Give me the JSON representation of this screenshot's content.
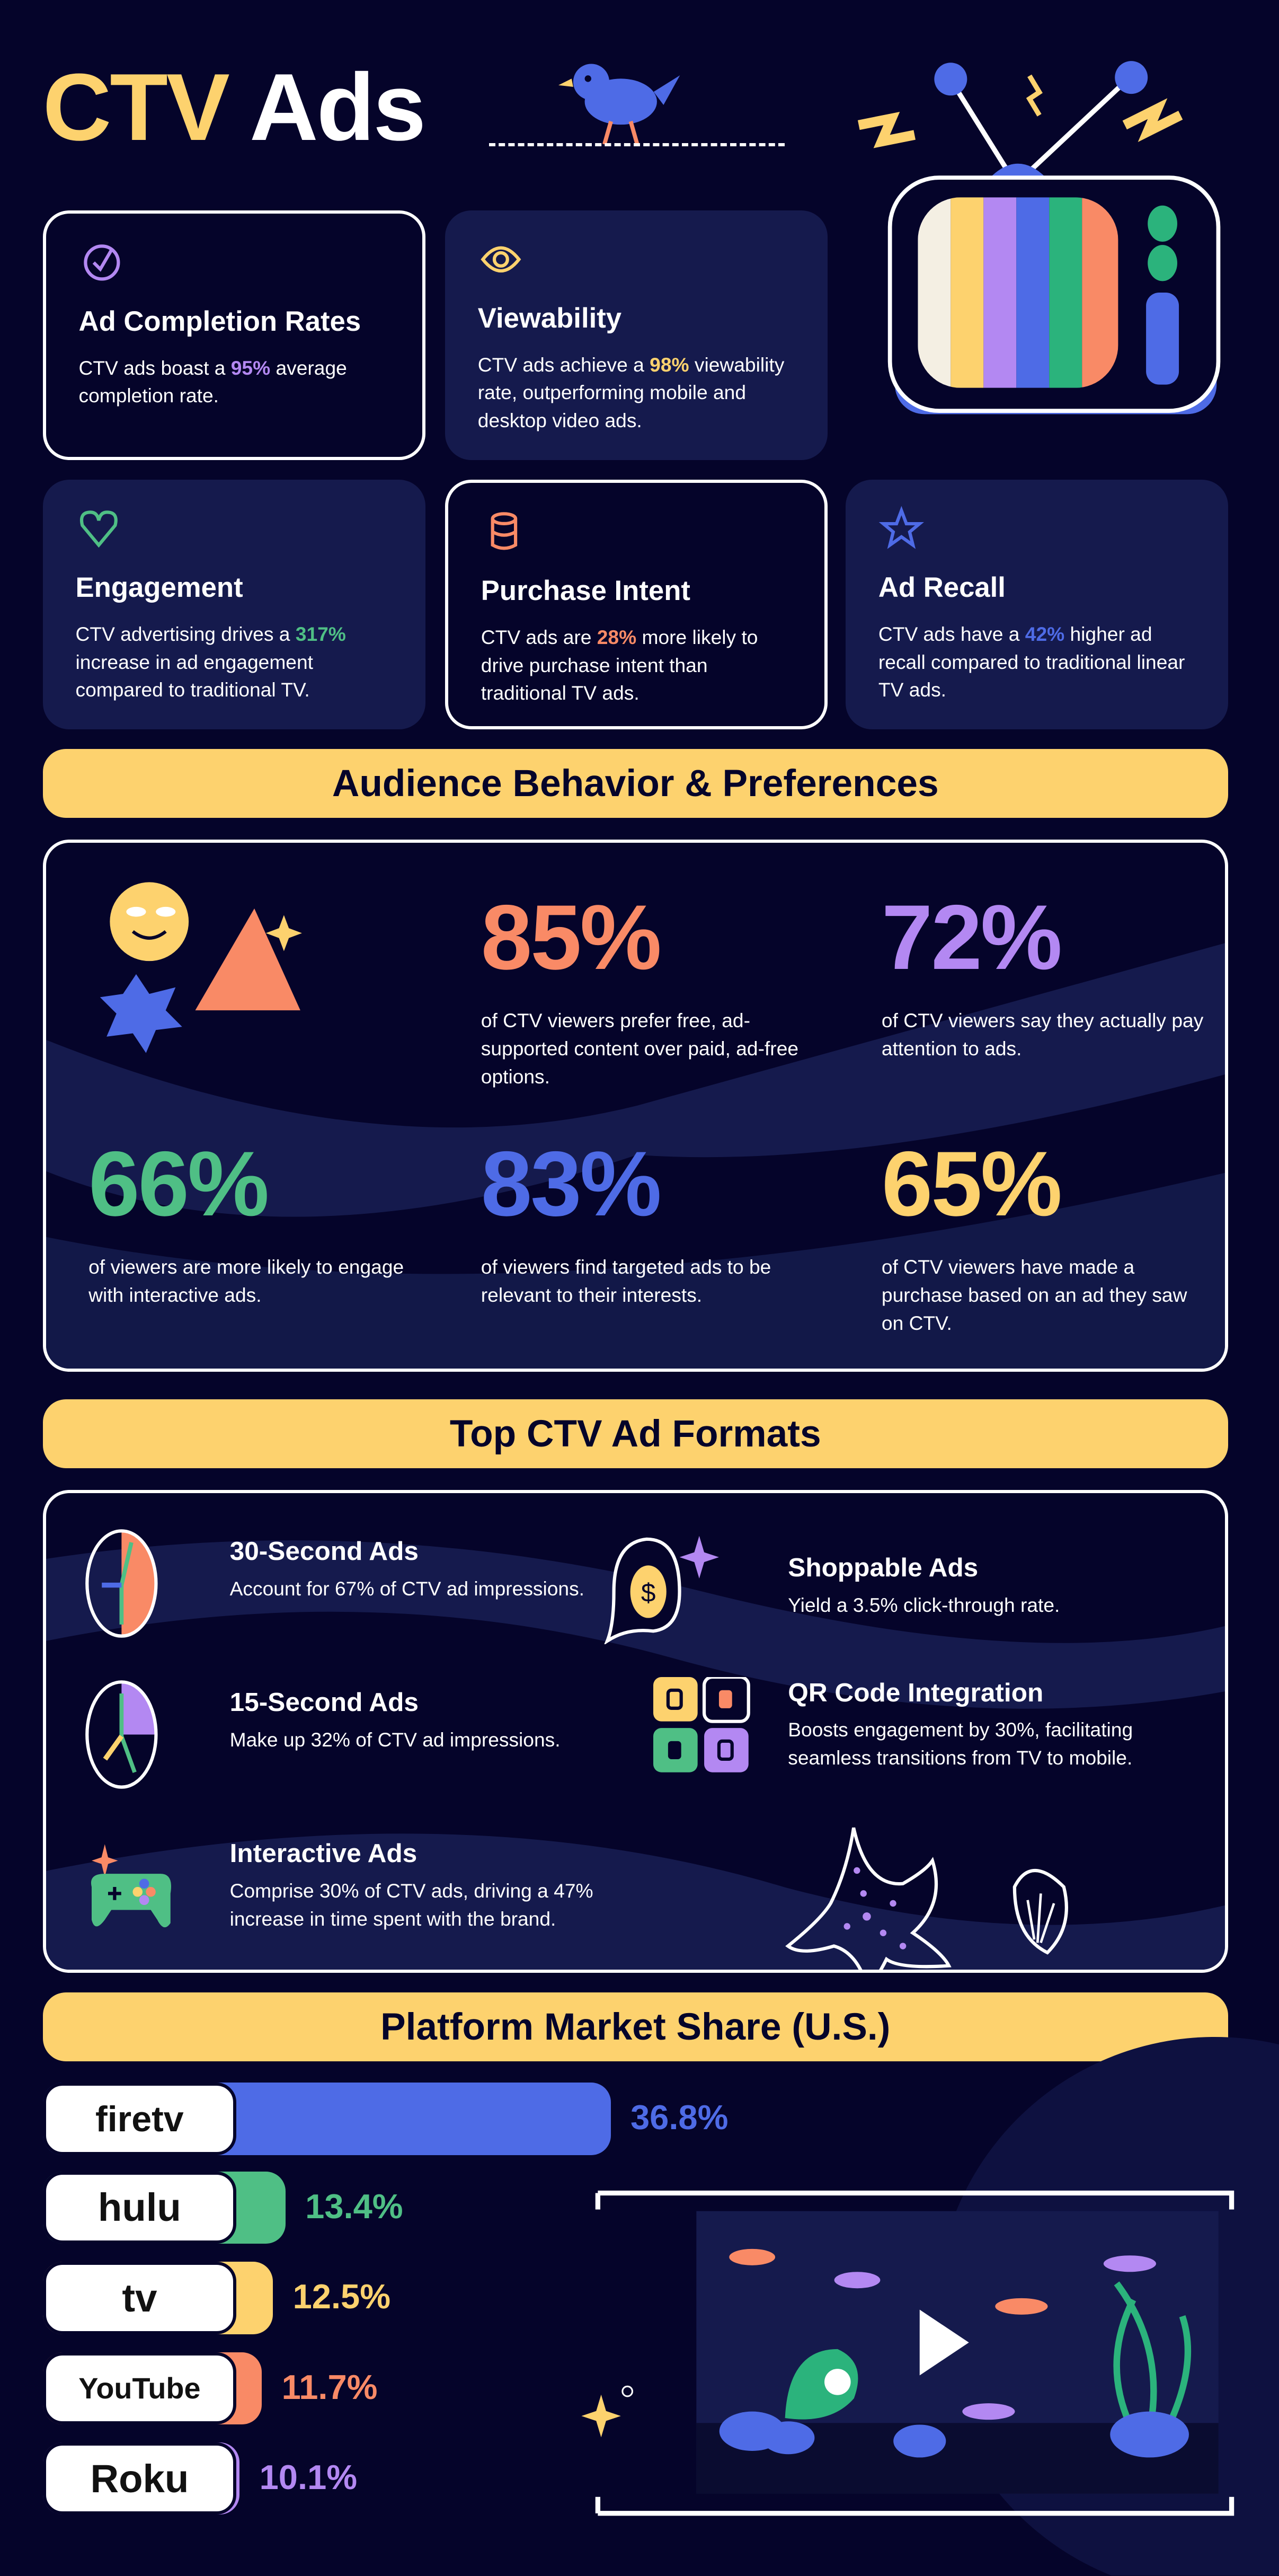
{
  "header": {
    "title_part1": "CTV",
    "title_part2": "Ads"
  },
  "colors": {
    "background": "#05042a",
    "card": "#151a4d",
    "yellow": "#FDD26E",
    "orange": "#F98A66",
    "purple": "#B388F2",
    "green": "#4FBF85",
    "blue": "#4E6BE6"
  },
  "cards": [
    {
      "title": "Ad Completion Rates",
      "pre": "CTV ads boast a ",
      "highlight": "95%",
      "post": " average completion rate.",
      "icon": "check-circle-icon"
    },
    {
      "title": "Viewability",
      "pre": "CTV ads achieve a ",
      "highlight": "98%",
      "post": " viewability rate, outperforming mobile and desktop video ads.",
      "icon": "eye-icon"
    },
    {
      "title": "Engagement",
      "pre": "CTV advertising drives a ",
      "highlight": "317%",
      "post": " increase in ad engagement compared to traditional TV.",
      "icon": "heart-icon"
    },
    {
      "title": "Purchase Intent",
      "pre": "CTV ads are ",
      "highlight": "28%",
      "post": " more likely to drive purchase intent than traditional TV ads.",
      "icon": "database-icon"
    },
    {
      "title": "Ad Recall",
      "pre": "CTV ads have a ",
      "highlight": "42%",
      "post": " higher ad recall compared to traditional linear TV ads.",
      "icon": "star-icon"
    }
  ],
  "audience": {
    "heading": "Audience Behavior & Preferences",
    "stats": [
      {
        "value": "85%",
        "text": "of CTV viewers prefer free, ad-supported content over paid, ad-free options."
      },
      {
        "value": "72%",
        "text": "of CTV viewers say they actually pay attention to ads."
      },
      {
        "value": "66%",
        "text": "of viewers are more likely to engage with interactive ads."
      },
      {
        "value": "83%",
        "text": "of viewers find targeted ads to be relevant to their interests."
      },
      {
        "value": "65%",
        "text": "of CTV viewers have made a purchase based on an ad they saw on CTV."
      }
    ]
  },
  "formats": {
    "heading": "Top CTV Ad Formats",
    "items": [
      {
        "title": "30-Second Ads",
        "text": "Account for 67% of CTV ad impressions.",
        "icon": "clock-icon"
      },
      {
        "title": "15-Second Ads",
        "text": "Make up 32% of CTV ad impressions.",
        "icon": "clock-icon"
      },
      {
        "title": "Interactive Ads",
        "text": "Comprise 30% of CTV ads, driving a 47% increase in time spent with the brand.",
        "icon": "gamepad-icon"
      },
      {
        "title": "Shoppable Ads",
        "text": "Yield a 3.5% click-through rate.",
        "icon": "dollar-bubble-icon"
      },
      {
        "title": "QR Code Integration",
        "text": "Boosts engagement by 30%, facilitating seamless transitions from TV to mobile.",
        "icon": "qr-code-icon"
      }
    ]
  },
  "market": {
    "heading": "Platform Market Share (U.S.)",
    "platforms": [
      {
        "logo": "firetv",
        "value": 36.8,
        "label": "36.8%",
        "color": "#4E6BE6"
      },
      {
        "logo": "hulu",
        "value": 13.4,
        "label": "13.4%",
        "color": "#4FBF85"
      },
      {
        "logo": "tv",
        "value": 12.5,
        "label": "12.5%",
        "color": "#FDD26E"
      },
      {
        "logo": "YouTube",
        "value": 11.7,
        "label": "11.7%",
        "color": "#F98A66"
      },
      {
        "logo": "Roku",
        "value": 10.1,
        "label": "10.1%",
        "color": "#B388F2"
      }
    ]
  }
}
